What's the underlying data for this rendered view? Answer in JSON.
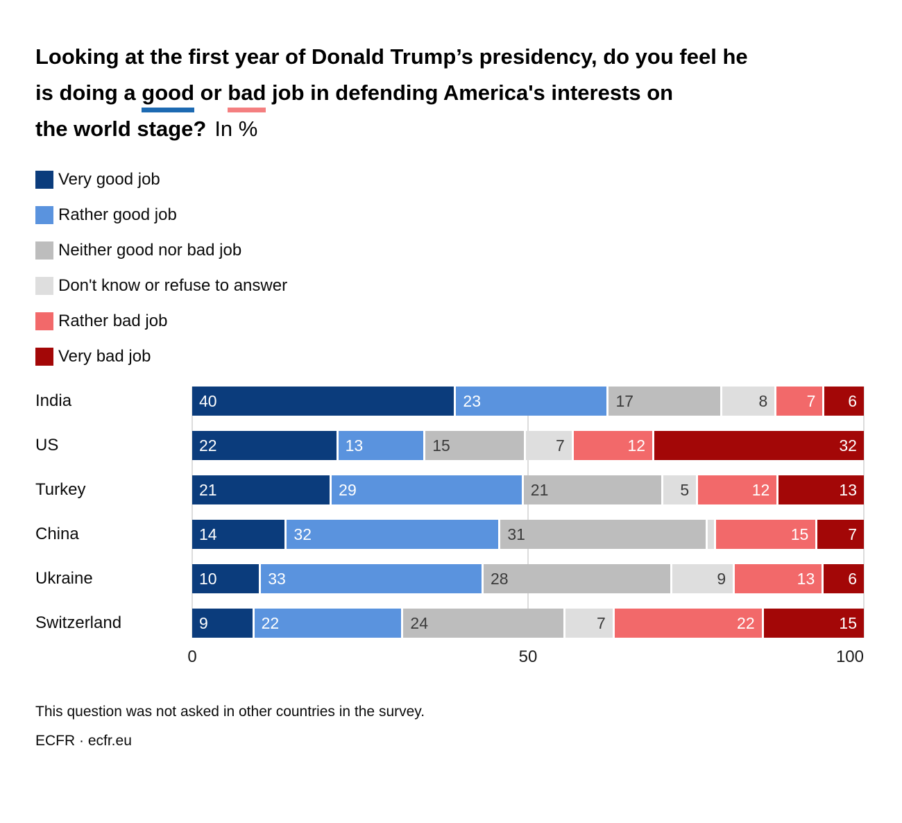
{
  "title_parts": {
    "line1": "Looking at the first year of Donald Trump’s presidency, do you feel he",
    "line2_pre": "is doing a ",
    "good_word": "good",
    "line2_mid": " or ",
    "bad_word": "bad",
    "line2_post": " job in defending America's interests on",
    "line3_bold": "the world stage?",
    "underline_good_color": "#1d6ab2",
    "underline_bad_color": "#f47f80"
  },
  "chart_data": {
    "type": "bar",
    "stacked": true,
    "orientation": "horizontal",
    "title": "Looking at the first year of Donald Trump’s presidency, do you feel he is doing a good or bad job in defending America's interests on the world stage?",
    "subtitle": "In %",
    "categories": [
      "India",
      "US",
      "Turkey",
      "China",
      "Ukraine",
      "Switzerland"
    ],
    "series": [
      {
        "name": "Very good job",
        "color": "#0b3c7c",
        "label_color": "#ffffff",
        "label_align": "left",
        "values": [
          40,
          22,
          21,
          14,
          10,
          9
        ]
      },
      {
        "name": "Rather good job",
        "color": "#5a93de",
        "label_color": "#ffffff",
        "label_align": "left",
        "values": [
          23,
          13,
          29,
          32,
          33,
          22
        ]
      },
      {
        "name": "Neither good nor bad job",
        "color": "#bdbdbd",
        "label_color": "#3a3a3a",
        "label_align": "left",
        "values": [
          17,
          15,
          21,
          31,
          28,
          24
        ]
      },
      {
        "name": "Don't know or refuse to answer",
        "color": "#dedede",
        "label_color": "#3a3a3a",
        "label_align": "right",
        "values": [
          8,
          7,
          5,
          1,
          9,
          7
        ],
        "labels": [
          "8",
          "7",
          "5",
          "",
          "9",
          "7"
        ]
      },
      {
        "name": "Rather bad job",
        "color": "#f2696a",
        "label_color": "#ffffff",
        "label_align": "right",
        "values": [
          7,
          12,
          12,
          15,
          13,
          22
        ]
      },
      {
        "name": "Very bad job",
        "color": "#a30707",
        "label_color": "#ffffff",
        "label_align": "right",
        "values": [
          6,
          32,
          13,
          7,
          6,
          15
        ]
      }
    ],
    "xlim": [
      0,
      100
    ],
    "gridlines": [
      0,
      50,
      100
    ],
    "xticks": [
      {
        "label": "0",
        "pos": 0,
        "anchor": "center"
      },
      {
        "label": "50",
        "pos": 50,
        "anchor": "center"
      },
      {
        "label": "100",
        "pos": 100,
        "anchor": "right"
      }
    ],
    "legend_position": "top-left",
    "grid": true
  },
  "footer": {
    "note": "This question was not asked in other countries in the survey.",
    "source": "ECFR · ecfr.eu"
  }
}
